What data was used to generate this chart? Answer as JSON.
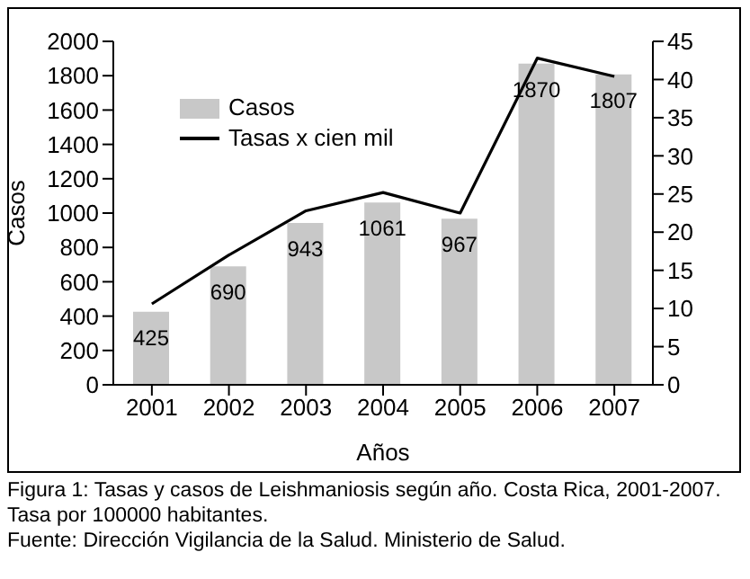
{
  "chart_data": {
    "type": "bar",
    "xlabel": "Años",
    "ylabel": "Casos",
    "categories": [
      "2001",
      "2002",
      "2003",
      "2004",
      "2005",
      "2006",
      "2007"
    ],
    "series": [
      {
        "name": "Casos",
        "color": "#c8c8c8",
        "values": [
          425,
          690,
          943,
          1061,
          967,
          1870,
          1807
        ],
        "value_labels": [
          "425",
          "690",
          "943",
          "1061",
          "967",
          "1870",
          "1807"
        ]
      },
      {
        "type": "line",
        "name": "Tasas x cien mil",
        "color": "#000000",
        "axis": "y2",
        "values": [
          10.6,
          17.0,
          22.8,
          25.2,
          22.5,
          42.8,
          40.4
        ]
      }
    ],
    "ylim": [
      0,
      2000
    ],
    "yticks": [
      0,
      200,
      400,
      600,
      800,
      1000,
      1200,
      1400,
      1600,
      1800,
      2000
    ],
    "y2lim": [
      0,
      45
    ],
    "y2ticks": [
      0,
      5,
      10,
      15,
      20,
      25,
      30,
      35,
      40,
      45
    ],
    "legend": "top left",
    "marker": "none",
    "line_style": "solid",
    "annotations": [
      "Figura 1: Tasas y casos de Leishmaniosis según año. Costa Rica, 2001-2007. Tasa por 100000 habitantes.",
      "Fuente: Dirección Vigilancia de la Salud. Ministerio de Salud."
    ]
  }
}
